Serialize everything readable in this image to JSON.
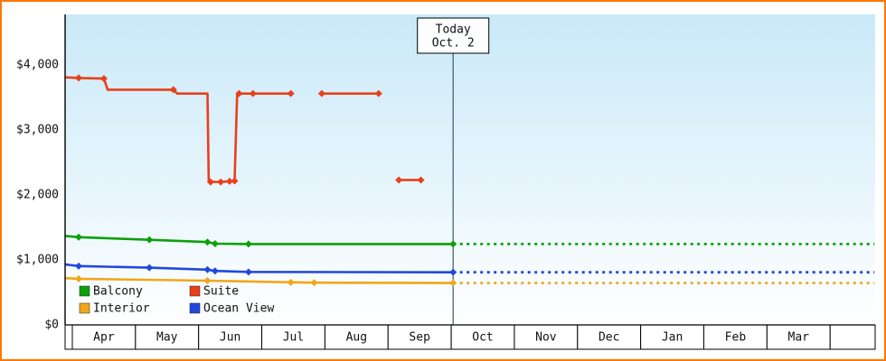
{
  "frame": {
    "border_color": "#ff7700",
    "background": "#ffffff"
  },
  "chart_data": {
    "type": "line",
    "legend_position": "bottom-left-inside",
    "grid": false,
    "x_axis": {
      "months": [
        "Apr",
        "May",
        "Jun",
        "Jul",
        "Aug",
        "Sep",
        "Oct",
        "Nov",
        "Dec",
        "Jan",
        "Feb",
        "Mar"
      ],
      "unit": "month index, April = 0"
    },
    "y_axis": {
      "min": 0,
      "max": 4000,
      "ticks": [
        {
          "value": 0,
          "label": "$0"
        },
        {
          "value": 1000,
          "label": "$1,000"
        },
        {
          "value": 2000,
          "label": "$2,000"
        },
        {
          "value": 3000,
          "label": "$3,000"
        },
        {
          "value": 4000,
          "label": "$4,000"
        }
      ]
    },
    "today": {
      "label_lines": [
        "Today",
        "Oct. 2"
      ],
      "x": 6.03,
      "line_color": "#3d5a6b",
      "box_fill": "#fbfdff"
    },
    "plot_background": {
      "top": "#c9e9f8",
      "bottom": "#ffffff"
    },
    "series": [
      {
        "name": "Suite",
        "color": "#e8401a",
        "segments": [
          [
            [
              -0.11,
              3810
            ],
            [
              0.1,
              3800
            ],
            [
              0.5,
              3790
            ],
            [
              0.56,
              3620
            ],
            [
              1.6,
              3620
            ],
            [
              1.66,
              3560
            ],
            [
              2.14,
              3560
            ],
            [
              2.16,
              2200
            ],
            [
              2.35,
              2200
            ],
            [
              2.49,
              2210
            ],
            [
              2.57,
              2215
            ],
            [
              2.61,
              3560
            ],
            [
              3.46,
              3560
            ]
          ],
          [
            [
              3.95,
              3560
            ],
            [
              4.85,
              3560
            ]
          ],
          [
            [
              5.17,
              2230
            ],
            [
              5.52,
              2230
            ]
          ]
        ],
        "markers": [
          [
            0.1,
            3800
          ],
          [
            0.5,
            3790
          ],
          [
            1.6,
            3620
          ],
          [
            2.19,
            2200
          ],
          [
            2.35,
            2200
          ],
          [
            2.49,
            2210
          ],
          [
            2.57,
            2215
          ],
          [
            2.64,
            3560
          ],
          [
            2.86,
            3560
          ],
          [
            3.46,
            3560
          ],
          [
            3.95,
            3560
          ],
          [
            4.85,
            3560
          ],
          [
            5.17,
            2230
          ],
          [
            5.52,
            2230
          ]
        ],
        "forecast": []
      },
      {
        "name": "Balcony",
        "color": "#0ca00c",
        "segments": [
          [
            [
              -0.11,
              1370
            ],
            [
              0.1,
              1350
            ],
            [
              1.22,
              1310
            ],
            [
              2.14,
              1275
            ],
            [
              2.26,
              1250
            ],
            [
              2.79,
              1245
            ],
            [
              6.03,
              1245
            ]
          ]
        ],
        "markers": [
          [
            0.1,
            1350
          ],
          [
            1.22,
            1310
          ],
          [
            2.14,
            1275
          ],
          [
            2.26,
            1250
          ],
          [
            2.79,
            1245
          ],
          [
            6.03,
            1245
          ]
        ],
        "forecast": [
          [
            6.03,
            1245
          ],
          [
            12.7,
            1245
          ]
        ]
      },
      {
        "name": "Ocean View",
        "color": "#2148dd",
        "segments": [
          [
            [
              -0.11,
              930
            ],
            [
              0.1,
              905
            ],
            [
              1.22,
              880
            ],
            [
              2.14,
              850
            ],
            [
              2.26,
              830
            ],
            [
              2.79,
              815
            ],
            [
              6.03,
              810
            ]
          ]
        ],
        "markers": [
          [
            0.1,
            905
          ],
          [
            1.22,
            880
          ],
          [
            2.14,
            850
          ],
          [
            2.26,
            830
          ],
          [
            2.79,
            815
          ],
          [
            6.03,
            810
          ]
        ],
        "forecast": [
          [
            6.03,
            810
          ],
          [
            12.7,
            810
          ]
        ]
      },
      {
        "name": "Interior",
        "color": "#f0a718",
        "segments": [
          [
            [
              -0.11,
              720
            ],
            [
              0.1,
              710
            ],
            [
              2.14,
              680
            ],
            [
              3.46,
              655
            ],
            [
              3.83,
              650
            ],
            [
              6.03,
              645
            ]
          ]
        ],
        "markers": [
          [
            0.1,
            710
          ],
          [
            2.14,
            680
          ],
          [
            3.46,
            655
          ],
          [
            3.83,
            650
          ],
          [
            6.03,
            645
          ]
        ],
        "forecast": [
          [
            6.03,
            645
          ],
          [
            12.7,
            645
          ]
        ]
      }
    ],
    "legend": {
      "rows": [
        [
          {
            "label": "Balcony",
            "color": "#0ca00c"
          },
          {
            "label": "Suite",
            "color": "#e8401a"
          }
        ],
        [
          {
            "label": "Interior",
            "color": "#f0a718"
          },
          {
            "label": "Ocean View",
            "color": "#2148dd"
          }
        ]
      ]
    }
  }
}
